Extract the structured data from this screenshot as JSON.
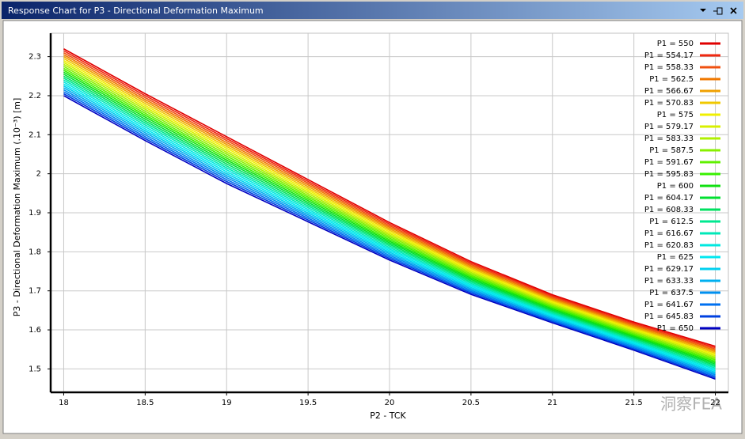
{
  "window_title": "Response Chart for P3 - Directional Deformation Maximum",
  "watermark": "洞察FEA",
  "chart_data": {
    "type": "line",
    "x_label": "P2 - TCK",
    "y_label": "P3 - Directional Deformation Maximum  (.10⁻³)  [m]",
    "x": [
      18,
      18.5,
      19,
      19.5,
      20,
      20.5,
      21,
      21.5,
      22
    ],
    "xlim": [
      17.92,
      22.08
    ],
    "xticks": [
      18,
      18.5,
      19,
      19.5,
      20,
      20.5,
      21,
      21.5,
      22
    ],
    "ylim": [
      1.44,
      2.36
    ],
    "yticks": [
      1.5,
      1.6,
      1.7,
      1.8,
      1.9,
      2,
      2.1,
      2.2,
      2.3
    ],
    "grid": true,
    "legend": "upper right",
    "series": [
      {
        "name": "P1 = 550",
        "color": "#e00000",
        "values": [
          2.32,
          2.205,
          2.095,
          1.985,
          1.875,
          1.775,
          1.69,
          1.62,
          1.558
        ]
      },
      {
        "name": "P1 = 554.17",
        "color": "#f02810",
        "values": [
          2.315,
          2.2,
          2.09,
          1.9805,
          1.871,
          1.7715,
          1.687,
          1.617,
          1.5545
        ]
      },
      {
        "name": "P1 = 558.33",
        "color": "#f05010",
        "values": [
          2.31,
          2.195,
          2.085,
          1.976,
          1.867,
          1.768,
          1.684,
          1.614,
          1.551
        ]
      },
      {
        "name": "P1 = 562.5",
        "color": "#f07800",
        "values": [
          2.305,
          2.19,
          2.08,
          1.9715,
          1.863,
          1.7645,
          1.681,
          1.611,
          1.5475
        ]
      },
      {
        "name": "P1 = 566.67",
        "color": "#f0a000",
        "values": [
          2.3,
          2.185,
          2.075,
          1.967,
          1.859,
          1.761,
          1.678,
          1.608,
          1.544
        ]
      },
      {
        "name": "P1 = 570.83",
        "color": "#f0c800",
        "values": [
          2.295,
          2.18,
          2.07,
          1.9625,
          1.855,
          1.7575,
          1.675,
          1.605,
          1.5405
        ]
      },
      {
        "name": "P1 = 575",
        "color": "#f0f000",
        "values": [
          2.29,
          2.175,
          2.065,
          1.958,
          1.851,
          1.754,
          1.672,
          1.602,
          1.537
        ]
      },
      {
        "name": "P1 = 579.17",
        "color": "#d8f000",
        "values": [
          2.285,
          2.17,
          2.06,
          1.9535,
          1.847,
          1.7505,
          1.669,
          1.599,
          1.5335
        ]
      },
      {
        "name": "P1 = 583.33",
        "color": "#b0f000",
        "values": [
          2.28,
          2.165,
          2.055,
          1.949,
          1.843,
          1.747,
          1.666,
          1.596,
          1.53
        ]
      },
      {
        "name": "P1 = 587.5",
        "color": "#88f000",
        "values": [
          2.275,
          2.16,
          2.05,
          1.9445,
          1.839,
          1.7435,
          1.663,
          1.593,
          1.5265
        ]
      },
      {
        "name": "P1 = 591.67",
        "color": "#60f000",
        "values": [
          2.27,
          2.155,
          2.045,
          1.94,
          1.835,
          1.74,
          1.66,
          1.59,
          1.523
        ]
      },
      {
        "name": "P1 = 595.83",
        "color": "#38f000",
        "values": [
          2.265,
          2.15,
          2.04,
          1.9355,
          1.831,
          1.7365,
          1.657,
          1.587,
          1.5195
        ]
      },
      {
        "name": "P1 = 600",
        "color": "#10e010",
        "values": [
          2.26,
          2.145,
          2.035,
          1.931,
          1.827,
          1.733,
          1.654,
          1.584,
          1.516
        ]
      },
      {
        "name": "P1 = 604.17",
        "color": "#00e030",
        "values": [
          2.255,
          2.14,
          2.03,
          1.9265,
          1.823,
          1.7295,
          1.651,
          1.581,
          1.5125
        ]
      },
      {
        "name": "P1 = 608.33",
        "color": "#00e060",
        "values": [
          2.25,
          2.135,
          2.025,
          1.922,
          1.819,
          1.726,
          1.648,
          1.578,
          1.509
        ]
      },
      {
        "name": "P1 = 612.5",
        "color": "#00e890",
        "values": [
          2.245,
          2.13,
          2.02,
          1.9175,
          1.815,
          1.7225,
          1.645,
          1.575,
          1.5055
        ]
      },
      {
        "name": "P1 = 616.67",
        "color": "#00e8b8",
        "values": [
          2.24,
          2.125,
          2.015,
          1.913,
          1.811,
          1.719,
          1.642,
          1.572,
          1.502
        ]
      },
      {
        "name": "P1 = 620.83",
        "color": "#00e8e0",
        "values": [
          2.235,
          2.12,
          2.01,
          1.9085,
          1.807,
          1.7155,
          1.639,
          1.569,
          1.4985
        ]
      },
      {
        "name": "P1 = 625",
        "color": "#00e8f0",
        "values": [
          2.23,
          2.115,
          2.005,
          1.904,
          1.803,
          1.712,
          1.636,
          1.566,
          1.495
        ]
      },
      {
        "name": "P1 = 629.17",
        "color": "#00d0f0",
        "values": [
          2.225,
          2.11,
          2.0,
          1.8995,
          1.799,
          1.7085,
          1.633,
          1.563,
          1.4915
        ]
      },
      {
        "name": "P1 = 633.33",
        "color": "#00b0f0",
        "values": [
          2.22,
          2.105,
          1.995,
          1.895,
          1.795,
          1.705,
          1.63,
          1.56,
          1.488
        ]
      },
      {
        "name": "P1 = 637.5",
        "color": "#0090f0",
        "values": [
          2.215,
          2.1,
          1.99,
          1.8905,
          1.791,
          1.7015,
          1.627,
          1.557,
          1.4845
        ]
      },
      {
        "name": "P1 = 641.67",
        "color": "#0070f0",
        "values": [
          2.21,
          2.095,
          1.985,
          1.886,
          1.787,
          1.698,
          1.624,
          1.554,
          1.481
        ]
      },
      {
        "name": "P1 = 645.83",
        "color": "#0040e0",
        "values": [
          2.205,
          2.09,
          1.98,
          1.8815,
          1.783,
          1.6945,
          1.621,
          1.551,
          1.4775
        ]
      },
      {
        "name": "P1 = 650",
        "color": "#0000c0",
        "values": [
          2.2,
          2.085,
          1.975,
          1.877,
          1.779,
          1.691,
          1.618,
          1.548,
          1.474
        ]
      }
    ]
  }
}
